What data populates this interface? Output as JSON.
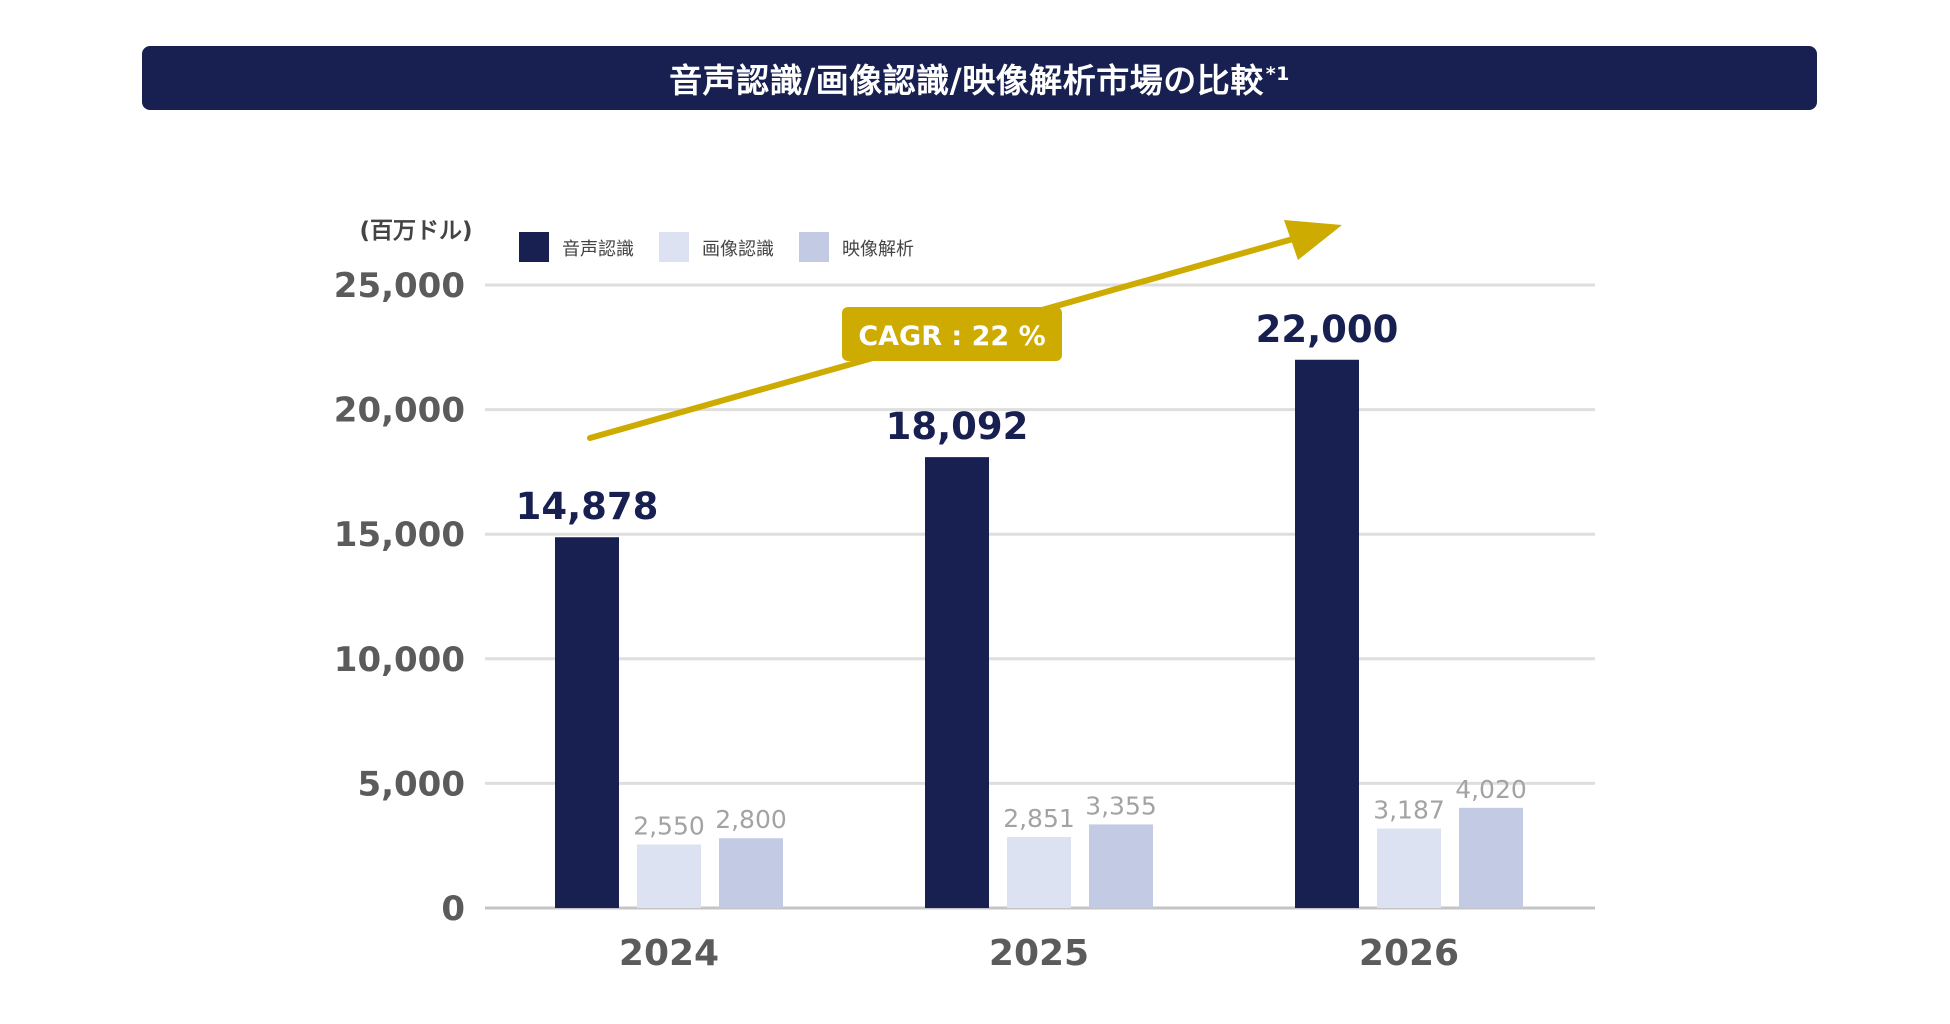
{
  "header": {
    "title": "音声認識/画像認識/映像解析市場の比較",
    "footnote_mark": "*1"
  },
  "chart_data": {
    "type": "bar",
    "unit_label": "(百万ドル)",
    "categories": [
      "2024",
      "2025",
      "2026"
    ],
    "series": [
      {
        "name": "音声認識",
        "color": "#172050",
        "label_color": "#172050",
        "values": [
          14878,
          18092,
          22000
        ]
      },
      {
        "name": "画像認識",
        "color": "#dde2f2",
        "label_color": "#a3a3a3",
        "values": [
          2550,
          2851,
          3187
        ]
      },
      {
        "name": "映像解析",
        "color": "#c3cbe4",
        "label_color": "#a3a3a3",
        "values": [
          2800,
          3355,
          4020
        ]
      }
    ],
    "value_labels": [
      [
        "14,878",
        "18,092",
        "22,000"
      ],
      [
        "2,550",
        "2,851",
        "3,187"
      ],
      [
        "2,800",
        "3,355",
        "4,020"
      ]
    ],
    "ylim": [
      0,
      25000
    ],
    "yticks": [
      0,
      5000,
      10000,
      15000,
      20000,
      25000
    ],
    "ytick_labels": [
      "0",
      "5,000",
      "10,000",
      "15,000",
      "20,000",
      "25,000"
    ],
    "grid": true,
    "legend_position": "top-left",
    "annotation": {
      "text": "CAGR : 22 %",
      "color": "#cdab00"
    }
  }
}
